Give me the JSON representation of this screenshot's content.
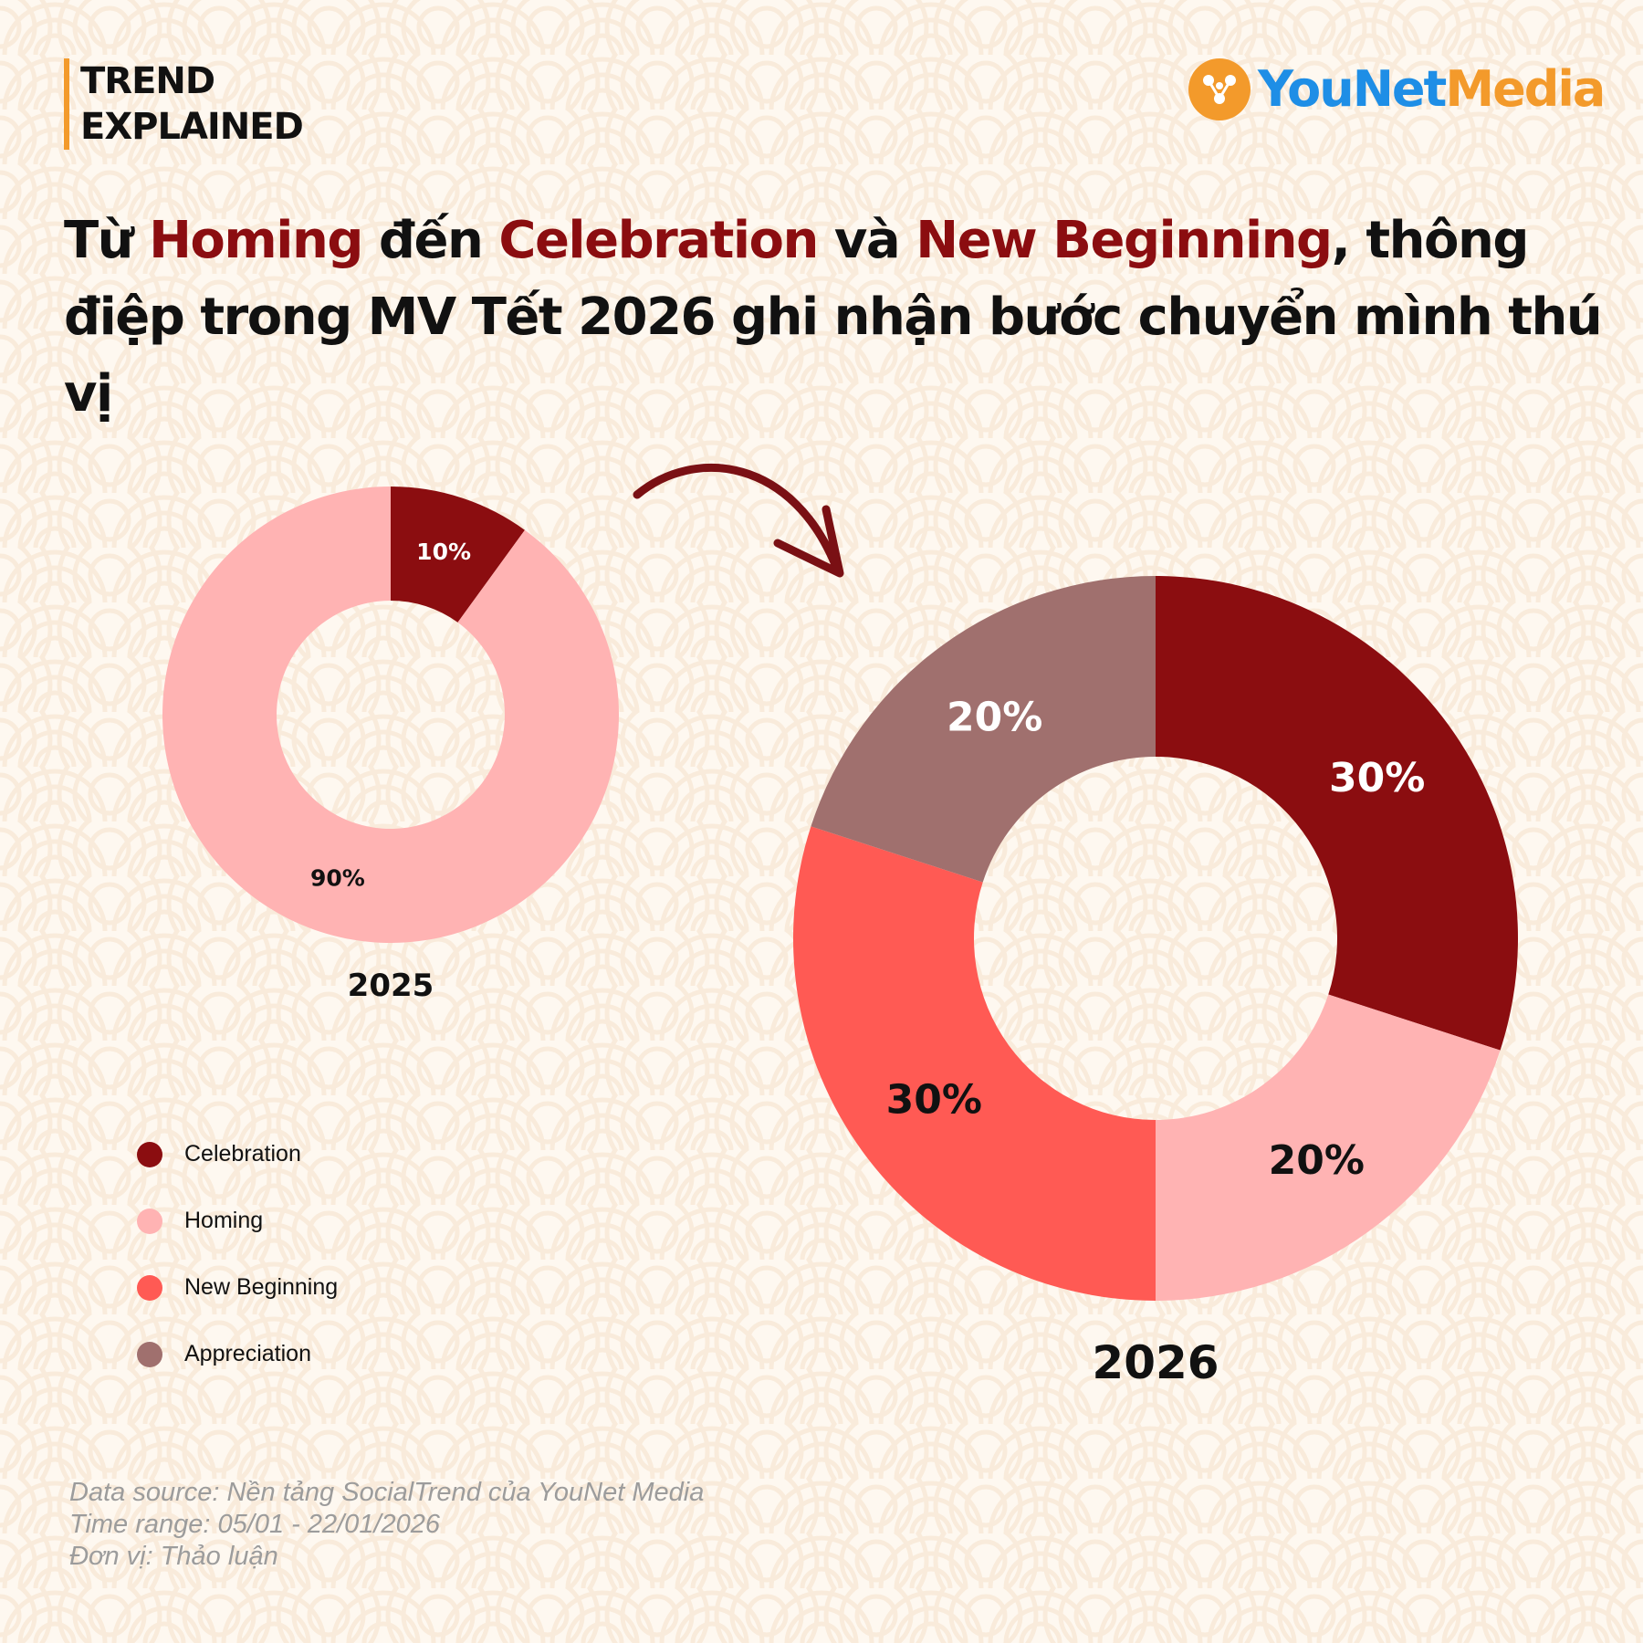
{
  "header": {
    "tag_line1": "TREND",
    "tag_line2": "EXPLAINED",
    "logo_text_you_net": "YouNet",
    "logo_text_media": "Media"
  },
  "title": {
    "p1": "Từ ",
    "h1": "Homing",
    "p2": " đến ",
    "h2": "Celebration",
    "p3": " và ",
    "h3": "New Beginning",
    "p4": ", thông điệp trong MV Tết 2026 ghi nhận bước chuyển mình thú vị"
  },
  "chart_data": [
    {
      "type": "pie",
      "variant": "donut",
      "title": "2025",
      "categories": [
        "Celebration",
        "Homing"
      ],
      "values": [
        10,
        90
      ],
      "labels": [
        "10%",
        "90%"
      ],
      "colors": [
        "#8b0d10",
        "#ffb3b3"
      ],
      "label_colors": [
        "#ffffff",
        "#111111"
      ]
    },
    {
      "type": "pie",
      "variant": "donut",
      "title": "2026",
      "categories": [
        "Celebration",
        "Homing",
        "New Beginning",
        "Appreciation"
      ],
      "values": [
        30,
        20,
        30,
        20
      ],
      "labels": [
        "30%",
        "20%",
        "30%",
        "20%"
      ],
      "colors": [
        "#8b0d10",
        "#ffb3b3",
        "#ff5a54",
        "#a0706e"
      ],
      "label_colors": [
        "#ffffff",
        "#111111",
        "#111111",
        "#ffffff"
      ]
    }
  ],
  "legend": {
    "items": [
      {
        "label": "Celebration",
        "color": "#8b0d10"
      },
      {
        "label": "Homing",
        "color": "#ffb3b3"
      },
      {
        "label": "New Beginning",
        "color": "#ff5a54"
      },
      {
        "label": "Appreciation",
        "color": "#a0706e"
      }
    ]
  },
  "footer": {
    "source": "Data source: Nền tảng SocialTrend của YouNet Media",
    "time_range": "Time range: 05/01 - 22/01/2026",
    "unit": "Đơn vị: Thảo luận"
  },
  "colors": {
    "accent": "#8b0d10",
    "tag_bar": "#f39a2b",
    "logo_blue": "#1e8ee6",
    "logo_orange": "#f39a2b"
  }
}
